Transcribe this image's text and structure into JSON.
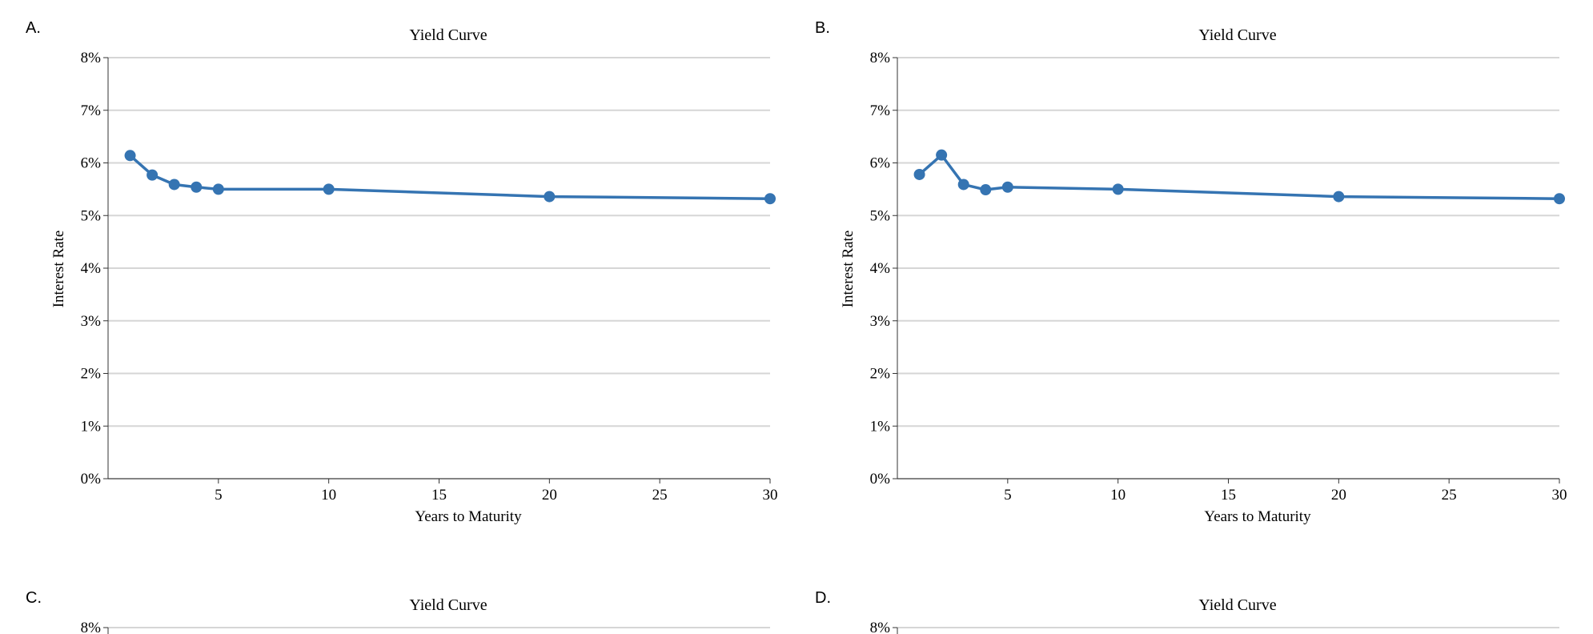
{
  "panels": [
    {
      "label": "A."
    },
    {
      "label": "B."
    },
    {
      "label": "C."
    },
    {
      "label": "D."
    }
  ],
  "chart_data": [
    {
      "type": "line",
      "title": "Yield Curve",
      "xlabel": "Years to Maturity",
      "ylabel": "Interest Rate",
      "xlim": [
        0,
        30
      ],
      "ylim": [
        0,
        8
      ],
      "xticks": [
        5,
        10,
        15,
        20,
        25,
        30
      ],
      "yticks": [
        "0%",
        "1%",
        "2%",
        "3%",
        "4%",
        "5%",
        "6%",
        "7%",
        "8%"
      ],
      "grid": true,
      "color": "#3574b2",
      "x": [
        1,
        2,
        3,
        4,
        5,
        10,
        20,
        30
      ],
      "y": [
        6.14,
        5.77,
        5.59,
        5.54,
        5.5,
        5.5,
        5.36,
        5.32
      ]
    },
    {
      "type": "line",
      "title": "Yield Curve",
      "xlabel": "Years to Maturity",
      "ylabel": "Interest Rate",
      "xlim": [
        0,
        30
      ],
      "ylim": [
        0,
        8
      ],
      "xticks": [
        5,
        10,
        15,
        20,
        25,
        30
      ],
      "yticks": [
        "0%",
        "1%",
        "2%",
        "3%",
        "4%",
        "5%",
        "6%",
        "7%",
        "8%"
      ],
      "grid": true,
      "color": "#3574b2",
      "x": [
        1,
        2,
        3,
        4,
        5,
        10,
        20,
        30
      ],
      "y": [
        5.78,
        6.15,
        5.59,
        5.49,
        5.54,
        5.5,
        5.36,
        5.32
      ]
    },
    {
      "type": "line",
      "title": "Yield Curve",
      "yticks": [
        "8%"
      ]
    },
    {
      "type": "line",
      "title": "Yield Curve",
      "yticks": [
        "8%"
      ]
    }
  ]
}
